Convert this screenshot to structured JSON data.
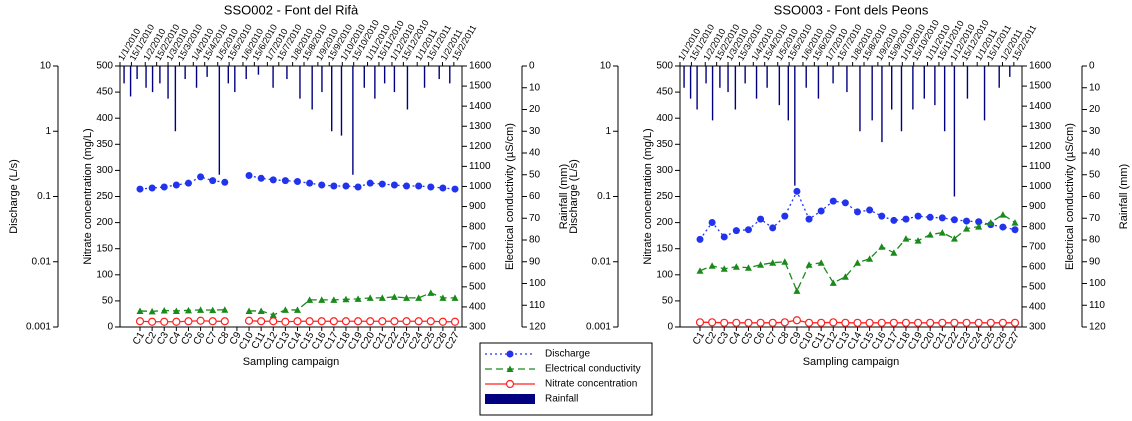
{
  "chart_data": [
    {
      "type": "line",
      "title": "SSO002 - Font del Rifà",
      "xlabel": "Sampling campaign",
      "ylabel": "Nitrate concentration (mg/L)",
      "y2label": "Electrical conductivity (µS/cm)",
      "y3label": "Discharge (L/s)",
      "y4label": "Rainfall (mm)",
      "categories": [
        "C1",
        "C2",
        "C3",
        "C4",
        "C5",
        "C6",
        "C7",
        "C8",
        "C9",
        "C10",
        "C11",
        "C12",
        "C13",
        "C14",
        "C15",
        "C16",
        "C17",
        "C18",
        "C19",
        "C20",
        "C21",
        "C22",
        "C23",
        "C24",
        "C25",
        "C26",
        "C27"
      ],
      "x2lim": [
        "1/1/2010",
        "25/2/2011"
      ],
      "x2ticks": [
        "1/1/2010",
        "15/1/2010",
        "1/2/2010",
        "15/2/2010",
        "1/3/2010",
        "15/3/2010",
        "1/4/2010",
        "15/4/2010",
        "1/5/2010",
        "15/5/2010",
        "1/6/2010",
        "15/6/2010",
        "1/7/2010",
        "15/7/2010",
        "1/8/2010",
        "15/8/2010",
        "1/9/2010",
        "15/9/2010",
        "1/10/2010",
        "15/10/2010",
        "1/11/2010",
        "15/11/2010",
        "1/12/2010",
        "15/12/2010",
        "1/1/2011",
        "15/1/2011",
        "1/2/2011",
        "15/2/2011"
      ],
      "ylim": [
        0,
        500
      ],
      "yticks": [
        0,
        50,
        100,
        150,
        200,
        250,
        300,
        350,
        400,
        450,
        500
      ],
      "y2lim": [
        300,
        1600
      ],
      "y2ticks": [
        300,
        400,
        500,
        600,
        700,
        800,
        900,
        1000,
        1100,
        1200,
        1300,
        1400,
        1500,
        1600
      ],
      "y3lim": [
        0.001,
        10
      ],
      "y3log": true,
      "y3ticks": [
        0.001,
        0.01,
        0.1,
        1,
        10
      ],
      "y4lim": [
        0,
        120
      ],
      "y4inverted": true,
      "y4ticks": [
        0,
        10,
        20,
        30,
        40,
        50,
        60,
        70,
        80,
        90,
        100,
        110,
        120
      ],
      "series": [
        {
          "name": "Discharge",
          "color": "#2233ee",
          "axis": "y3",
          "line_style": "dotted",
          "marker": "circle",
          "values": [
            0.13,
            0.135,
            0.14,
            0.15,
            0.16,
            0.2,
            0.175,
            0.165,
            null,
            0.21,
            0.19,
            0.18,
            0.175,
            0.17,
            0.16,
            0.15,
            0.145,
            0.145,
            0.14,
            0.16,
            0.155,
            0.15,
            0.145,
            0.145,
            0.14,
            0.135,
            0.13
          ]
        },
        {
          "name": "Electrical conductivity",
          "color": "#1a8a1a",
          "axis": "y2",
          "line_style": "dashed",
          "marker": "triangle",
          "values": [
            380,
            378,
            382,
            380,
            383,
            385,
            384,
            386,
            null,
            380,
            380,
            360,
            385,
            385,
            435,
            435,
            435,
            438,
            440,
            445,
            445,
            450,
            445,
            445,
            470,
            445,
            445
          ]
        },
        {
          "name": "Nitrate concentration",
          "color": "#ff2020",
          "axis": "y",
          "line_style": "solid",
          "marker": "open-circle",
          "values": [
            11,
            10,
            10,
            10,
            11,
            12,
            11,
            11,
            null,
            12,
            11,
            11,
            10,
            11,
            11,
            11,
            11,
            11,
            11,
            11,
            11,
            11,
            11,
            11,
            11,
            10,
            10
          ]
        },
        {
          "name": "Rainfall",
          "color": "#000080",
          "axis": "y4",
          "kind": "bar",
          "x": [
            "6/1/2010",
            "14/1/2010",
            "22/1/2010",
            "2/2/2010",
            "10/2/2010",
            "19/2/2010",
            "1/3/2010",
            "10/3/2010",
            "22/3/2010",
            "5/4/2010",
            "18/4/2010",
            "3/5/2010",
            "14/5/2010",
            "22/5/2010",
            "5/6/2010",
            "20/6/2010",
            "8/7/2010",
            "25/7/2010",
            "10/8/2010",
            "25/8/2010",
            "6/9/2010",
            "18/9/2010",
            "30/9/2010",
            "14/10/2010",
            "28/10/2010",
            "10/11/2010",
            "22/11/2010",
            "4/12/2010",
            "20/12/2010",
            "10/1/2011",
            "28/1/2011",
            "10/2/2011"
          ],
          "values": [
            8,
            14,
            6,
            10,
            12,
            8,
            15,
            30,
            6,
            10,
            5,
            50,
            8,
            12,
            6,
            4,
            10,
            6,
            15,
            20,
            12,
            30,
            32,
            50,
            10,
            15,
            8,
            12,
            20,
            10,
            6,
            8
          ]
        }
      ]
    },
    {
      "type": "line",
      "title": "SSO003 - Font dels Peons",
      "xlabel": "Sampling campaign",
      "ylabel": "Nitrate concentration (mg/L)",
      "y2label": "Electrical conductivity (µS/cm)",
      "y3label": "Discharge (L/s)",
      "y4label": "Rainfall (mm)",
      "categories": [
        "C1",
        "C2",
        "C3",
        "C4",
        "C5",
        "C6",
        "C7",
        "C8",
        "C9",
        "C10",
        "C11",
        "C12",
        "C13",
        "C14",
        "C15",
        "C16",
        "C17",
        "C18",
        "C19",
        "C20",
        "C21",
        "C22",
        "C23",
        "C24",
        "C25",
        "C26",
        "C27"
      ],
      "x2lim": [
        "1/1/2010",
        "25/2/2011"
      ],
      "x2ticks": [
        "1/1/2010",
        "15/1/2010",
        "1/2/2010",
        "15/2/2010",
        "1/3/2010",
        "15/3/2010",
        "1/4/2010",
        "15/4/2010",
        "1/5/2010",
        "15/5/2010",
        "1/6/2010",
        "15/6/2010",
        "1/7/2010",
        "15/7/2010",
        "1/8/2010",
        "15/8/2010",
        "1/9/2010",
        "15/9/2010",
        "1/10/2010",
        "15/10/2010",
        "1/11/2010",
        "15/11/2010",
        "1/12/2010",
        "15/12/2010",
        "1/1/2011",
        "15/1/2011",
        "1/2/2011",
        "15/2/2011"
      ],
      "ylim": [
        0,
        500
      ],
      "yticks": [
        0,
        50,
        100,
        150,
        200,
        250,
        300,
        350,
        400,
        450,
        500
      ],
      "y2lim": [
        300,
        1600
      ],
      "y2ticks": [
        300,
        400,
        500,
        600,
        700,
        800,
        900,
        1000,
        1100,
        1200,
        1300,
        1400,
        1500,
        1600
      ],
      "y3lim": [
        0.001,
        10
      ],
      "y3log": true,
      "y3ticks": [
        0.001,
        0.01,
        0.1,
        1,
        10
      ],
      "y4lim": [
        0,
        120
      ],
      "y4inverted": true,
      "y4ticks": [
        0,
        10,
        20,
        30,
        40,
        50,
        60,
        70,
        80,
        90,
        100,
        110,
        120
      ],
      "series": [
        {
          "color": "#2233ee",
          "axis": "y3",
          "line_style": "dotted",
          "marker": "circle",
          "values": [
            0.022,
            0.04,
            0.024,
            0.03,
            0.031,
            0.045,
            0.033,
            0.05,
            0.12,
            0.045,
            0.06,
            0.085,
            0.08,
            0.058,
            0.062,
            0.05,
            0.043,
            0.045,
            0.05,
            0.048,
            0.047,
            0.044,
            0.042,
            0.041,
            0.037,
            0.034,
            0.031
          ]
        },
        {
          "color": "#1a8a1a",
          "axis": "y2",
          "line_style": "dashed",
          "marker": "triangle",
          "values": [
            580,
            605,
            590,
            600,
            595,
            610,
            620,
            625,
            480,
            610,
            620,
            520,
            550,
            620,
            640,
            700,
            670,
            740,
            730,
            760,
            770,
            740,
            790,
            800,
            820,
            860,
            820
          ]
        },
        {
          "color": "#ff2020",
          "axis": "y",
          "line_style": "solid",
          "marker": "open-circle",
          "values": [
            9,
            9,
            8,
            8,
            8,
            8,
            8,
            9,
            13,
            8,
            8,
            9,
            8,
            8,
            8,
            8,
            8,
            8,
            8,
            8,
            8,
            8,
            8,
            8,
            8,
            8,
            8
          ]
        },
        {
          "color": "#000080",
          "axis": "y4",
          "kind": "bar",
          "x": [
            "6/1/2010",
            "14/1/2010",
            "22/1/2010",
            "2/2/2010",
            "10/2/2010",
            "19/2/2010",
            "1/3/2010",
            "10/3/2010",
            "22/3/2010",
            "5/4/2010",
            "18/4/2010",
            "3/5/2010",
            "14/5/2010",
            "22/5/2010",
            "5/6/2010",
            "20/6/2010",
            "8/7/2010",
            "25/7/2010",
            "10/8/2010",
            "25/8/2010",
            "6/9/2010",
            "18/9/2010",
            "30/9/2010",
            "14/10/2010",
            "28/10/2010",
            "10/11/2010",
            "22/11/2010",
            "4/12/2010",
            "20/12/2010",
            "10/1/2011",
            "28/1/2011",
            "10/2/2011"
          ],
          "values": [
            10,
            15,
            20,
            8,
            25,
            10,
            12,
            20,
            8,
            15,
            10,
            18,
            25,
            55,
            10,
            15,
            8,
            12,
            30,
            25,
            35,
            20,
            30,
            20,
            15,
            18,
            30,
            60,
            15,
            25,
            10,
            5
          ]
        }
      ]
    }
  ]
}
